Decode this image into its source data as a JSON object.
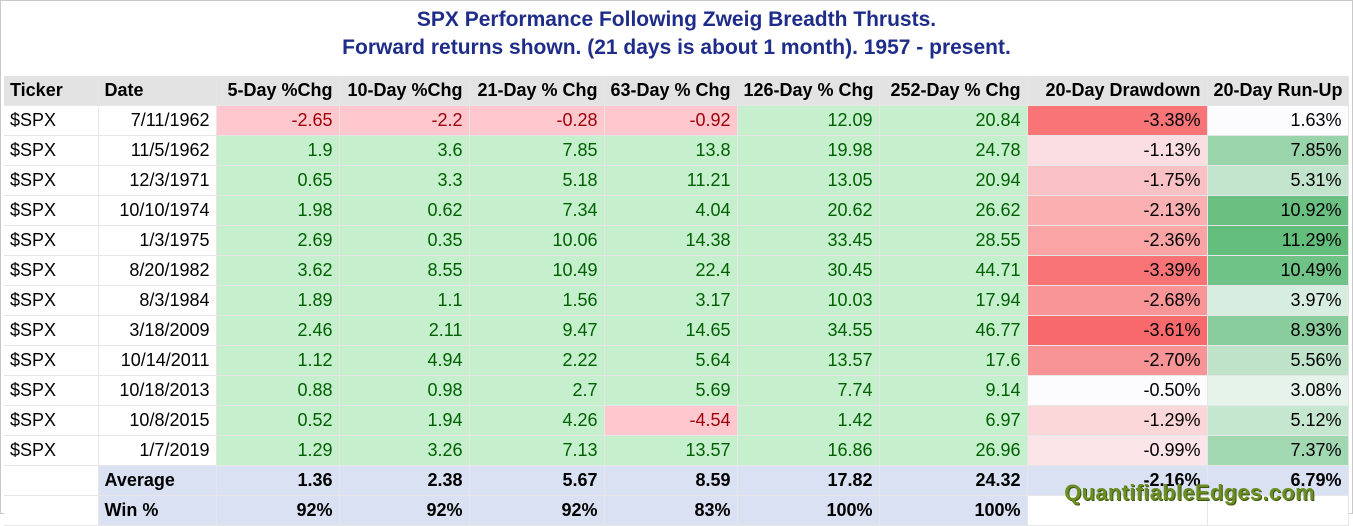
{
  "title_line1": "SPX Performance Following Zweig Breadth Thrusts.",
  "title_line2": "Forward returns shown. (21 days is about 1 month). 1957 - present.",
  "headers": [
    "Ticker",
    "Date",
    "5-Day %Chg",
    "10-Day %Chg",
    "21-Day % Chg",
    "63-Day % Chg",
    "126-Day % Chg",
    "252-Day % Chg",
    "20-Day Drawdown",
    "20-Day Run-Up"
  ],
  "rows": [
    {
      "ticker": "$SPX",
      "date": "7/11/1962",
      "d5": "-2.65",
      "d10": "-2.2",
      "d21": "-0.28",
      "d63": "-0.92",
      "d126": "12.09",
      "d252": "20.84",
      "dd": "-3.38%",
      "ru": "1.63%"
    },
    {
      "ticker": "$SPX",
      "date": "11/5/1962",
      "d5": "1.9",
      "d10": "3.6",
      "d21": "7.85",
      "d63": "13.8",
      "d126": "19.98",
      "d252": "24.78",
      "dd": "-1.13%",
      "ru": "7.85%"
    },
    {
      "ticker": "$SPX",
      "date": "12/3/1971",
      "d5": "0.65",
      "d10": "3.3",
      "d21": "5.18",
      "d63": "11.21",
      "d126": "13.05",
      "d252": "20.94",
      "dd": "-1.75%",
      "ru": "5.31%"
    },
    {
      "ticker": "$SPX",
      "date": "10/10/1974",
      "d5": "1.98",
      "d10": "0.62",
      "d21": "7.34",
      "d63": "4.04",
      "d126": "20.62",
      "d252": "26.62",
      "dd": "-2.13%",
      "ru": "10.92%"
    },
    {
      "ticker": "$SPX",
      "date": "1/3/1975",
      "d5": "2.69",
      "d10": "0.35",
      "d21": "10.06",
      "d63": "14.38",
      "d126": "33.45",
      "d252": "28.55",
      "dd": "-2.36%",
      "ru": "11.29%"
    },
    {
      "ticker": "$SPX",
      "date": "8/20/1982",
      "d5": "3.62",
      "d10": "8.55",
      "d21": "10.49",
      "d63": "22.4",
      "d126": "30.45",
      "d252": "44.71",
      "dd": "-3.39%",
      "ru": "10.49%"
    },
    {
      "ticker": "$SPX",
      "date": "8/3/1984",
      "d5": "1.89",
      "d10": "1.1",
      "d21": "1.56",
      "d63": "3.17",
      "d126": "10.03",
      "d252": "17.94",
      "dd": "-2.68%",
      "ru": "3.97%"
    },
    {
      "ticker": "$SPX",
      "date": "3/18/2009",
      "d5": "2.46",
      "d10": "2.11",
      "d21": "9.47",
      "d63": "14.65",
      "d126": "34.55",
      "d252": "46.77",
      "dd": "-3.61%",
      "ru": "8.93%"
    },
    {
      "ticker": "$SPX",
      "date": "10/14/2011",
      "d5": "1.12",
      "d10": "4.94",
      "d21": "2.22",
      "d63": "5.64",
      "d126": "13.57",
      "d252": "17.6",
      "dd": "-2.70%",
      "ru": "5.56%"
    },
    {
      "ticker": "$SPX",
      "date": "10/18/2013",
      "d5": "0.88",
      "d10": "0.98",
      "d21": "2.7",
      "d63": "5.69",
      "d126": "7.74",
      "d252": "9.14",
      "dd": "-0.50%",
      "ru": "3.08%"
    },
    {
      "ticker": "$SPX",
      "date": "10/8/2015",
      "d5": "0.52",
      "d10": "1.94",
      "d21": "4.26",
      "d63": "-4.54",
      "d126": "1.42",
      "d252": "6.97",
      "dd": "-1.29%",
      "ru": "5.12%"
    },
    {
      "ticker": "$SPX",
      "date": "1/7/2019",
      "d5": "1.29",
      "d10": "3.26",
      "d21": "7.13",
      "d63": "13.57",
      "d126": "16.86",
      "d252": "26.96",
      "dd": "-0.99%",
      "ru": "7.37%"
    }
  ],
  "summary": [
    {
      "label": "Average",
      "d5": "1.36",
      "d10": "2.38",
      "d21": "5.67",
      "d63": "8.59",
      "d126": "17.82",
      "d252": "24.32",
      "dd": "-2.16%",
      "ru": "6.79%"
    },
    {
      "label": "Win %",
      "d5": "92%",
      "d10": "92%",
      "d21": "92%",
      "d63": "83%",
      "d126": "100%",
      "d252": "100%",
      "dd": "",
      "ru": ""
    }
  ],
  "brand": "QuantifiableEdges.com",
  "colors": {
    "title": "#1f2d8a",
    "positive_fill": "#c6efce",
    "positive_text": "#006100",
    "negative_fill": "#ffc7ce",
    "negative_text": "#9c0006",
    "scale_red": "#f8696b",
    "scale_white": "#fcfcff",
    "scale_green": "#63be7b",
    "summary_fill": "#d9e1f2",
    "brand": "#6b8e23"
  }
}
